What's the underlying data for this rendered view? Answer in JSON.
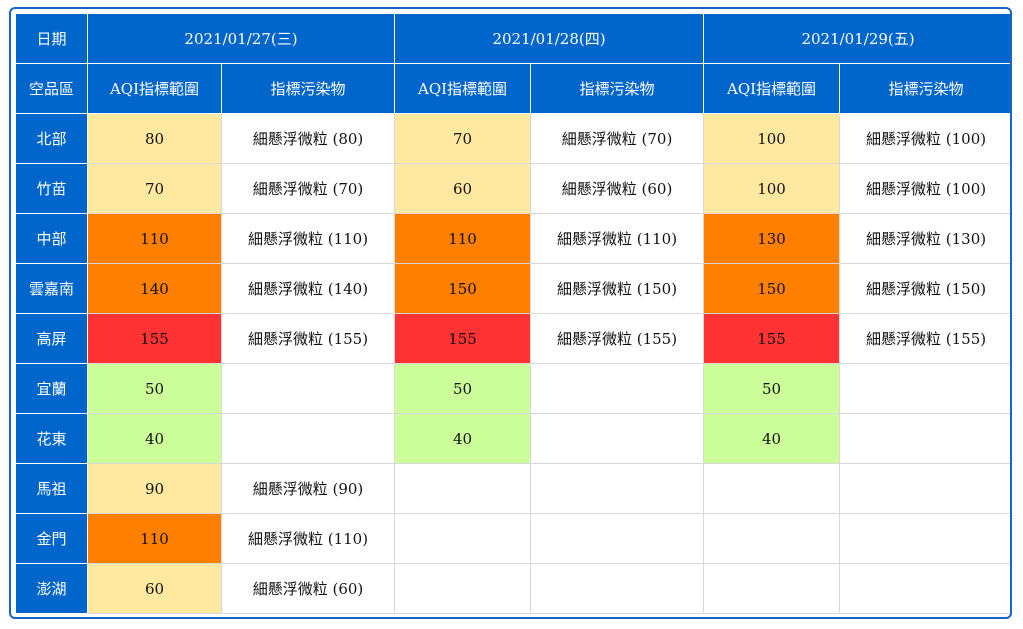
{
  "header": {
    "date_label": "日期",
    "region_label": "空品區",
    "aqi_col": "AQI指標範圍",
    "pollutant_col": "指標污染物",
    "dates": [
      "2021/01/27(三)",
      "2021/01/28(四)",
      "2021/01/29(五)"
    ]
  },
  "colors": {
    "header_blue": "#0066cc",
    "moderate": "#ffe8a0",
    "unhealthy_for_sensitive": "#ff8000",
    "unhealthy": "#ff3333",
    "good": "#ccff99"
  },
  "rows": [
    {
      "region": "北部",
      "days": [
        {
          "aqi": "80",
          "level": "moderate",
          "pollutant": "細懸浮微粒 (80)"
        },
        {
          "aqi": "70",
          "level": "moderate",
          "pollutant": "細懸浮微粒 (70)"
        },
        {
          "aqi": "100",
          "level": "moderate",
          "pollutant": "細懸浮微粒 (100)"
        }
      ]
    },
    {
      "region": "竹苗",
      "days": [
        {
          "aqi": "70",
          "level": "moderate",
          "pollutant": "細懸浮微粒 (70)"
        },
        {
          "aqi": "60",
          "level": "moderate",
          "pollutant": "細懸浮微粒 (60)"
        },
        {
          "aqi": "100",
          "level": "moderate",
          "pollutant": "細懸浮微粒 (100)"
        }
      ]
    },
    {
      "region": "中部",
      "days": [
        {
          "aqi": "110",
          "level": "usg",
          "pollutant": "細懸浮微粒 (110)"
        },
        {
          "aqi": "110",
          "level": "usg",
          "pollutant": "細懸浮微粒 (110)"
        },
        {
          "aqi": "130",
          "level": "usg",
          "pollutant": "細懸浮微粒 (130)"
        }
      ]
    },
    {
      "region": "雲嘉南",
      "days": [
        {
          "aqi": "140",
          "level": "usg",
          "pollutant": "細懸浮微粒 (140)"
        },
        {
          "aqi": "150",
          "level": "usg",
          "pollutant": "細懸浮微粒 (150)"
        },
        {
          "aqi": "150",
          "level": "usg",
          "pollutant": "細懸浮微粒 (150)"
        }
      ]
    },
    {
      "region": "高屏",
      "days": [
        {
          "aqi": "155",
          "level": "unhealthy",
          "pollutant": "細懸浮微粒 (155)"
        },
        {
          "aqi": "155",
          "level": "unhealthy",
          "pollutant": "細懸浮微粒 (155)"
        },
        {
          "aqi": "155",
          "level": "unhealthy",
          "pollutant": "細懸浮微粒 (155)"
        }
      ]
    },
    {
      "region": "宜蘭",
      "days": [
        {
          "aqi": "50",
          "level": "good",
          "pollutant": ""
        },
        {
          "aqi": "50",
          "level": "good",
          "pollutant": ""
        },
        {
          "aqi": "50",
          "level": "good",
          "pollutant": ""
        }
      ]
    },
    {
      "region": "花東",
      "days": [
        {
          "aqi": "40",
          "level": "good",
          "pollutant": ""
        },
        {
          "aqi": "40",
          "level": "good",
          "pollutant": ""
        },
        {
          "aqi": "40",
          "level": "good",
          "pollutant": ""
        }
      ]
    },
    {
      "region": "馬祖",
      "days": [
        {
          "aqi": "90",
          "level": "moderate",
          "pollutant": "細懸浮微粒 (90)"
        },
        {
          "aqi": "",
          "level": "none",
          "pollutant": ""
        },
        {
          "aqi": "",
          "level": "none",
          "pollutant": ""
        }
      ]
    },
    {
      "region": "金門",
      "days": [
        {
          "aqi": "110",
          "level": "usg",
          "pollutant": "細懸浮微粒 (110)"
        },
        {
          "aqi": "",
          "level": "none",
          "pollutant": ""
        },
        {
          "aqi": "",
          "level": "none",
          "pollutant": ""
        }
      ]
    },
    {
      "region": "澎湖",
      "days": [
        {
          "aqi": "60",
          "level": "moderate",
          "pollutant": "細懸浮微粒 (60)"
        },
        {
          "aqi": "",
          "level": "none",
          "pollutant": ""
        },
        {
          "aqi": "",
          "level": "none",
          "pollutant": ""
        }
      ]
    }
  ]
}
